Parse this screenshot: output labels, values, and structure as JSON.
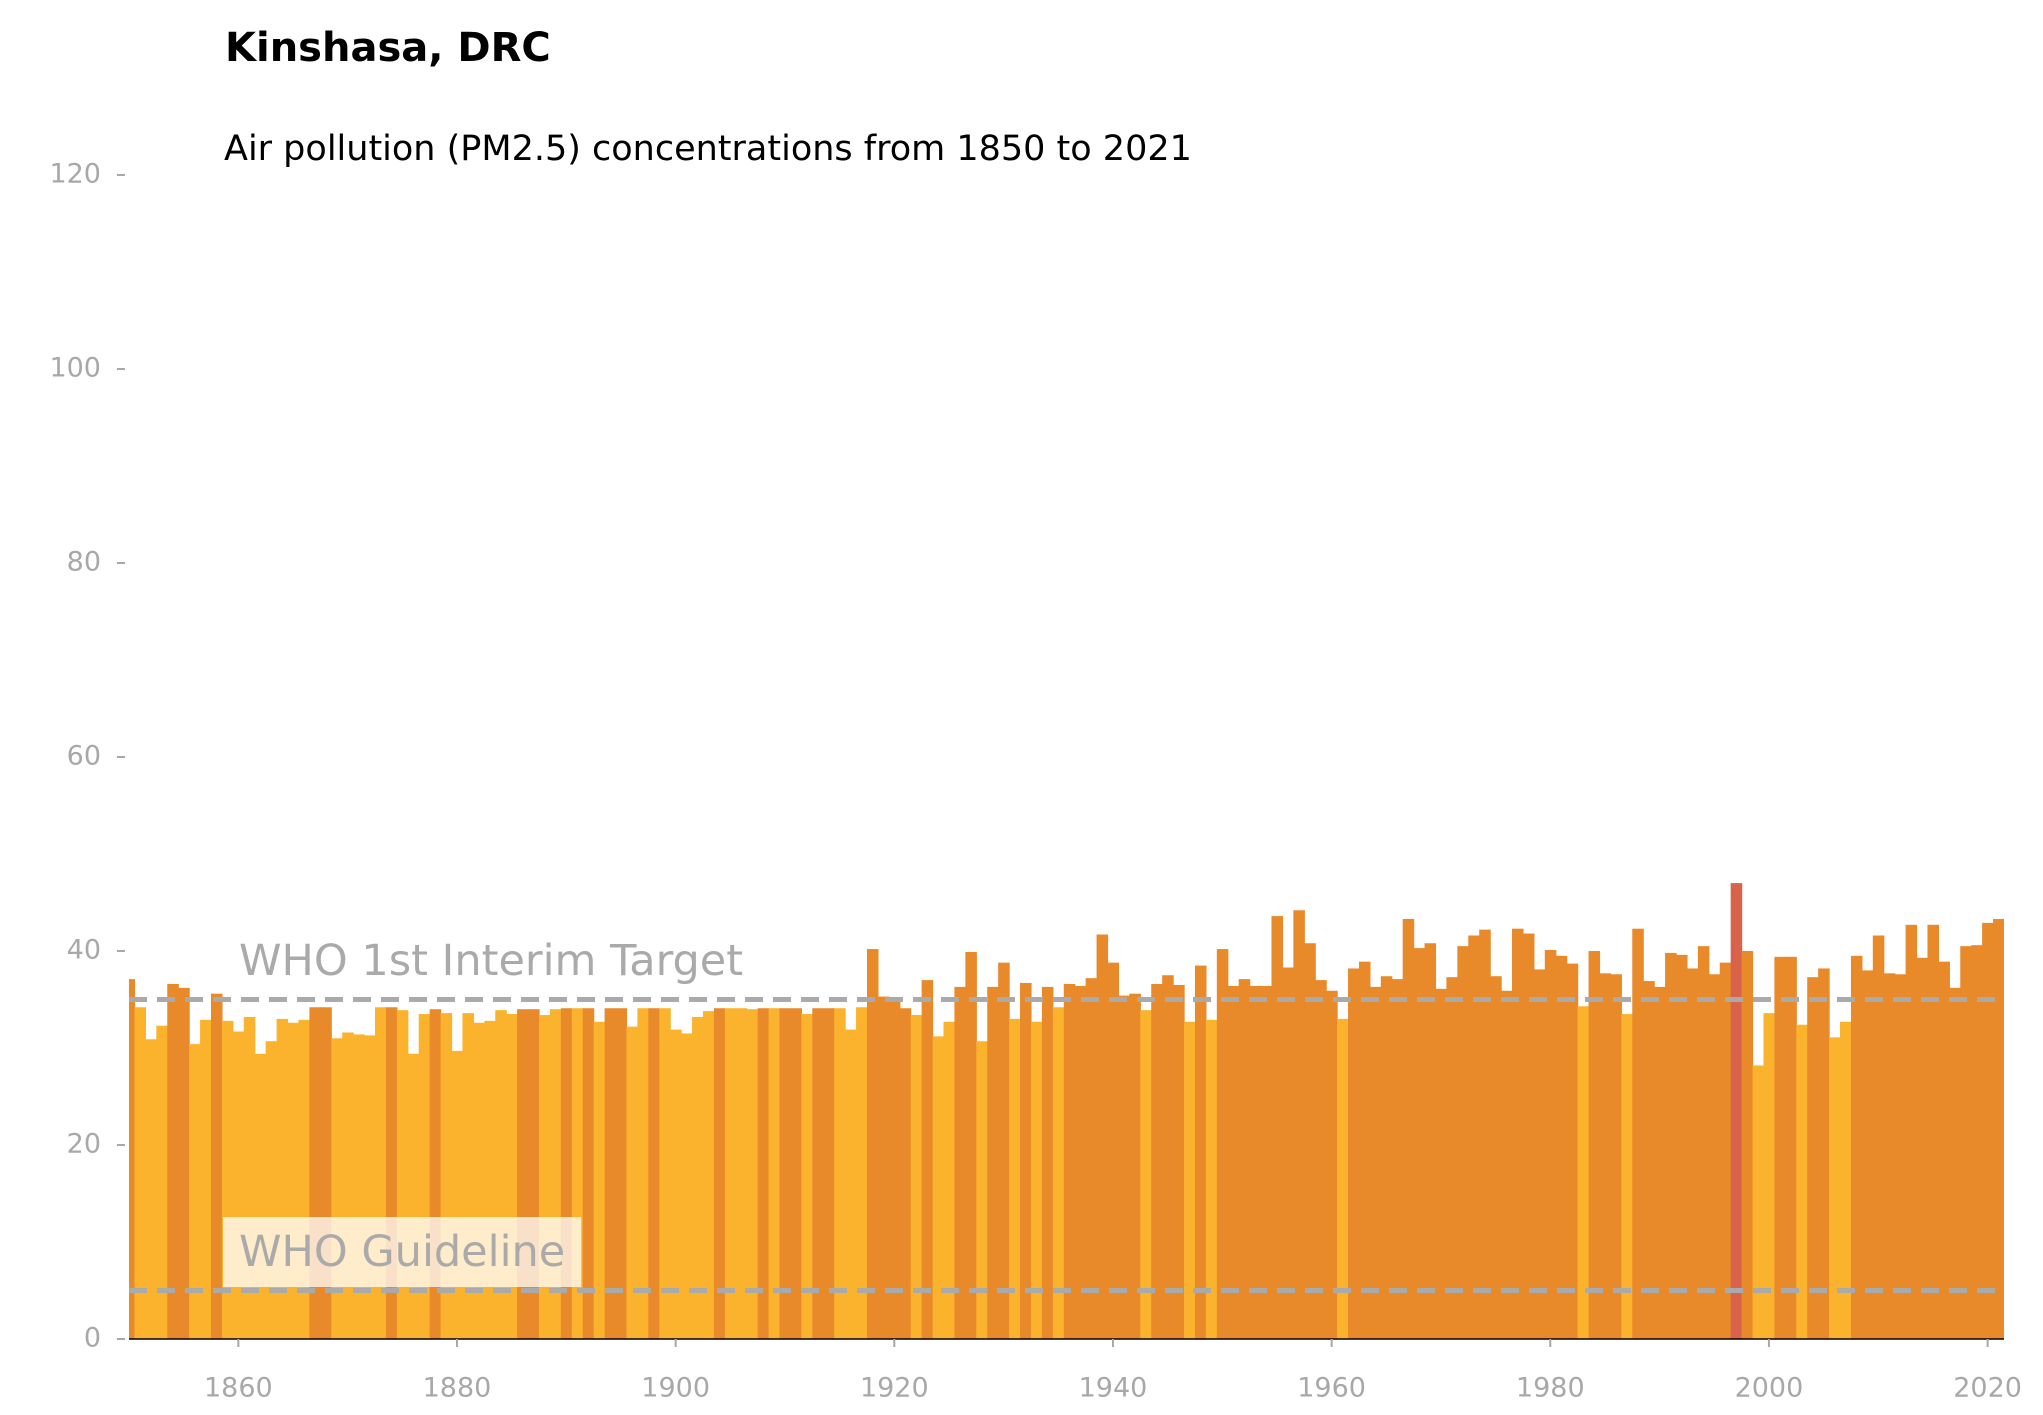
{
  "chart_data": {
    "type": "bar",
    "title": "Kinshasa, DRC",
    "subtitle": "Air pollution (PM2.5) concentrations from 1850 to 2021",
    "x": [
      1850,
      1851,
      1852,
      1853,
      1854,
      1855,
      1856,
      1857,
      1858,
      1859,
      1860,
      1861,
      1862,
      1863,
      1864,
      1865,
      1866,
      1867,
      1868,
      1869,
      1870,
      1871,
      1872,
      1873,
      1874,
      1875,
      1876,
      1877,
      1878,
      1879,
      1880,
      1881,
      1882,
      1883,
      1884,
      1885,
      1886,
      1887,
      1888,
      1889,
      1890,
      1891,
      1892,
      1893,
      1894,
      1895,
      1896,
      1897,
      1898,
      1899,
      1900,
      1901,
      1902,
      1903,
      1904,
      1905,
      1906,
      1907,
      1908,
      1909,
      1910,
      1911,
      1912,
      1913,
      1914,
      1915,
      1916,
      1917,
      1918,
      1919,
      1920,
      1921,
      1922,
      1923,
      1924,
      1925,
      1926,
      1927,
      1928,
      1929,
      1930,
      1931,
      1932,
      1933,
      1934,
      1935,
      1936,
      1937,
      1938,
      1939,
      1940,
      1941,
      1942,
      1943,
      1944,
      1945,
      1946,
      1947,
      1948,
      1949,
      1950,
      1951,
      1952,
      1953,
      1954,
      1955,
      1956,
      1957,
      1958,
      1959,
      1960,
      1961,
      1962,
      1963,
      1964,
      1965,
      1966,
      1967,
      1968,
      1969,
      1970,
      1971,
      1972,
      1973,
      1974,
      1975,
      1976,
      1977,
      1978,
      1979,
      1980,
      1981,
      1982,
      1983,
      1984,
      1985,
      1986,
      1987,
      1988,
      1989,
      1990,
      1991,
      1992,
      1993,
      1994,
      1995,
      1996,
      1997,
      1998,
      1999,
      2000,
      2001,
      2002,
      2003,
      2004,
      2005,
      2006,
      2007,
      2008,
      2009,
      2010,
      2011,
      2012,
      2013,
      2014,
      2015,
      2016,
      2017,
      2018,
      2019,
      2020,
      2021
    ],
    "values": [
      37.1,
      34.2,
      30.9,
      32.3,
      36.6,
      36.2,
      30.4,
      32.9,
      35.6,
      32.8,
      31.7,
      33.2,
      29.4,
      30.7,
      33.0,
      32.6,
      32.9,
      34.2,
      34.2,
      31.0,
      31.6,
      31.4,
      31.3,
      34.2,
      34.2,
      33.9,
      29.4,
      33.5,
      34.0,
      33.6,
      29.7,
      33.6,
      32.6,
      32.8,
      33.9,
      33.5,
      34.0,
      34.0,
      33.4,
      34.0,
      34.1,
      34.1,
      34.1,
      32.7,
      34.1,
      34.1,
      32.2,
      34.1,
      34.1,
      34.1,
      31.9,
      31.5,
      33.2,
      33.8,
      34.1,
      34.1,
      34.1,
      34.0,
      34.1,
      34.1,
      34.1,
      34.1,
      33.5,
      34.1,
      34.1,
      34.1,
      31.9,
      34.2,
      40.2,
      35.3,
      34.8,
      34.1,
      33.4,
      37.0,
      31.2,
      32.7,
      36.3,
      39.9,
      30.7,
      36.3,
      38.8,
      33.0,
      36.7,
      32.7,
      36.3,
      34.2,
      36.6,
      36.4,
      37.2,
      41.7,
      38.8,
      35.4,
      35.6,
      33.9,
      36.6,
      37.5,
      36.5,
      32.7,
      38.5,
      32.9,
      40.2,
      36.4,
      37.1,
      36.4,
      36.4,
      43.6,
      38.3,
      44.2,
      40.8,
      37.0,
      35.9,
      33.0,
      38.2,
      38.9,
      36.3,
      37.4,
      37.1,
      43.3,
      40.3,
      40.8,
      36.1,
      37.3,
      40.5,
      41.6,
      42.2,
      37.4,
      35.9,
      42.3,
      41.8,
      38.1,
      40.1,
      39.5,
      38.7,
      34.3,
      40.0,
      37.7,
      37.6,
      33.5,
      42.3,
      36.9,
      36.3,
      39.8,
      39.6,
      38.2,
      40.5,
      37.6,
      38.8,
      47.0,
      40.0,
      28.2,
      33.6,
      39.4,
      39.4,
      32.4,
      37.3,
      38.2,
      31.1,
      32.7,
      39.5,
      38.0,
      41.6,
      37.7,
      37.6,
      42.7,
      39.3,
      42.7,
      38.9,
      36.2,
      40.5,
      40.6,
      42.9,
      43.3
    ],
    "colors": [
      "#e8892a",
      "#fbb32e",
      "#fbb32e",
      "#fbb32e",
      "#e8892a",
      "#e8892a",
      "#fbb32e",
      "#fbb32e",
      "#e8892a",
      "#fbb32e",
      "#fbb32e",
      "#fbb32e",
      "#fbb32e",
      "#fbb32e",
      "#fbb32e",
      "#fbb32e",
      "#fbb32e",
      "#e8892a",
      "#e8892a",
      "#fbb32e",
      "#fbb32e",
      "#fbb32e",
      "#fbb32e",
      "#fbb32e",
      "#e8892a",
      "#fbb32e",
      "#fbb32e",
      "#fbb32e",
      "#e8892a",
      "#fbb32e",
      "#fbb32e",
      "#fbb32e",
      "#fbb32e",
      "#fbb32e",
      "#fbb32e",
      "#fbb32e",
      "#e8892a",
      "#e8892a",
      "#fbb32e",
      "#fbb32e",
      "#e8892a",
      "#fbb32e",
      "#e8892a",
      "#fbb32e",
      "#e8892a",
      "#e8892a",
      "#fbb32e",
      "#fbb32e",
      "#e8892a",
      "#fbb32e",
      "#fbb32e",
      "#fbb32e",
      "#fbb32e",
      "#fbb32e",
      "#e8892a",
      "#fbb32e",
      "#fbb32e",
      "#fbb32e",
      "#e8892a",
      "#fbb32e",
      "#e8892a",
      "#e8892a",
      "#fbb32e",
      "#e8892a",
      "#e8892a",
      "#fbb32e",
      "#fbb32e",
      "#fbb32e",
      "#e8892a",
      "#e8892a",
      "#e8892a",
      "#e8892a",
      "#fbb32e",
      "#e8892a",
      "#fbb32e",
      "#fbb32e",
      "#e8892a",
      "#e8892a",
      "#fbb32e",
      "#e8892a",
      "#e8892a",
      "#fbb32e",
      "#e8892a",
      "#fbb32e",
      "#e8892a",
      "#fbb32e",
      "#e8892a",
      "#e8892a",
      "#e8892a",
      "#e8892a",
      "#e8892a",
      "#e8892a",
      "#e8892a",
      "#fbb32e",
      "#e8892a",
      "#e8892a",
      "#e8892a",
      "#fbb32e",
      "#e8892a",
      "#fbb32e",
      "#e8892a",
      "#e8892a",
      "#e8892a",
      "#e8892a",
      "#e8892a",
      "#e8892a",
      "#e8892a",
      "#e8892a",
      "#e8892a",
      "#e8892a",
      "#e8892a",
      "#fbb32e",
      "#e8892a",
      "#e8892a",
      "#e8892a",
      "#e8892a",
      "#e8892a",
      "#e8892a",
      "#e8892a",
      "#e8892a",
      "#e8892a",
      "#e8892a",
      "#e8892a",
      "#e8892a",
      "#e8892a",
      "#e8892a",
      "#e8892a",
      "#e8892a",
      "#e8892a",
      "#e8892a",
      "#e8892a",
      "#e8892a",
      "#e8892a",
      "#fbb32e",
      "#e8892a",
      "#e8892a",
      "#e8892a",
      "#fbb32e",
      "#e8892a",
      "#e8892a",
      "#e8892a",
      "#e8892a",
      "#e8892a",
      "#e8892a",
      "#e8892a",
      "#e8892a",
      "#e8892a",
      "#d9634a",
      "#e8892a",
      "#fbb32e",
      "#fbb32e",
      "#e8892a",
      "#e8892a",
      "#fbb32e",
      "#e8892a",
      "#e8892a",
      "#fbb32e",
      "#fbb32e",
      "#e8892a",
      "#e8892a",
      "#e8892a",
      "#e8892a",
      "#e8892a",
      "#e8892a",
      "#e8892a",
      "#e8892a",
      "#e8892a",
      "#e8892a",
      "#e8892a",
      "#e8892a",
      "#e8892a",
      "#e8892a"
    ],
    "xlim": [
      1850,
      2021.5
    ],
    "xticks": [
      1860,
      1880,
      1900,
      1920,
      1940,
      1960,
      1980,
      2000,
      2020
    ],
    "ylim": [
      0,
      120
    ],
    "yticks": [
      0,
      20,
      40,
      60,
      80,
      100,
      120
    ],
    "reference_lines": [
      {
        "value": 35,
        "label": "WHO 1st Interim Target",
        "color": "#aaaaaa"
      },
      {
        "value": 5,
        "label": "WHO Guideline",
        "color": "#aaaaaa"
      }
    ]
  }
}
